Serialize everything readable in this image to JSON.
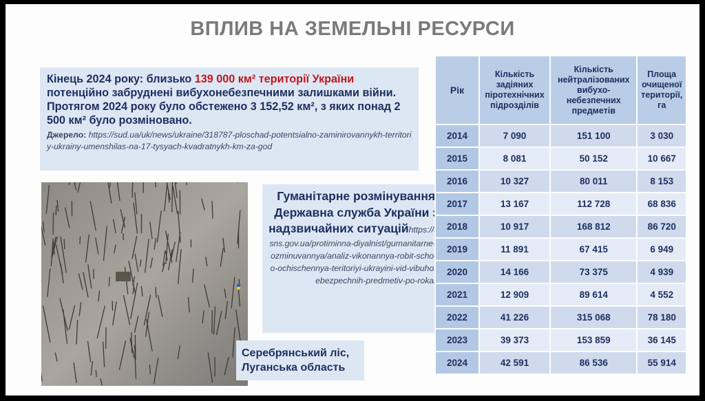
{
  "slide_title": "ВПЛИВ НА ЗЕМЕЛЬНІ РЕСУРСИ",
  "info": {
    "lead": "Кінець 2024 року: близько ",
    "highlight": "139 000 км² території України",
    "rest": " потенційно забруднені вибухонебезпечними залишками війни. Протягом 2024 року було обстежено 3 152,52 км², з яких понад 2 500 км² було розміновано.",
    "source_label": "Джерело: ",
    "source_url": "https://sud.ua/uk/news/ukraine/318787-ploschad-potentsialno-zaminirovannykh-territoriy-ukrainy-umenshilas-na-17-tysyach-kvadratnykh-km-za-god",
    "highlight_color": "#c0181c"
  },
  "photo_caption": "Серебрянський ліс, Луганська область",
  "middle": {
    "heading": "Гуманітарне розмінування, Державна служба України з надзвичайних ситуацій",
    "url": "https://dsns.gov.ua/protiminna-diyalnist/gumanitarne-rozminuvannya/analiz-vikonannya-robit-schodo-ochischennya-teritoriyi-ukrayini-vid-vibuhonebezpechnih-predmetiv-po-rokah"
  },
  "table": {
    "headers": [
      "Рік",
      "Кількість задіяних піротехнічних підрозділів",
      "Кількість нейтралізованих вибухо-небезпечних предметів",
      "Площа очищеної території, га"
    ],
    "rows": [
      [
        "2014",
        "7 090",
        "151 100",
        "3 030"
      ],
      [
        "2015",
        "8 081",
        "50 152",
        "10 667"
      ],
      [
        "2016",
        "10 327",
        "80 011",
        "8 153"
      ],
      [
        "2017",
        "13 167",
        "112 728",
        "68 836"
      ],
      [
        "2018",
        "10 917",
        "168 812",
        "86 720"
      ],
      [
        "2019",
        "11 891",
        "67 415",
        "6 949"
      ],
      [
        "2020",
        "14 166",
        "73 375",
        "4 939"
      ],
      [
        "2021",
        "12 909",
        "89 614",
        "4 552"
      ],
      [
        "2022",
        "41 226",
        "315 068",
        "78 180"
      ],
      [
        "2023",
        "39 373",
        "153 859",
        "36 145"
      ],
      [
        "2024",
        "42 591",
        "86 536",
        "55 914"
      ]
    ]
  }
}
